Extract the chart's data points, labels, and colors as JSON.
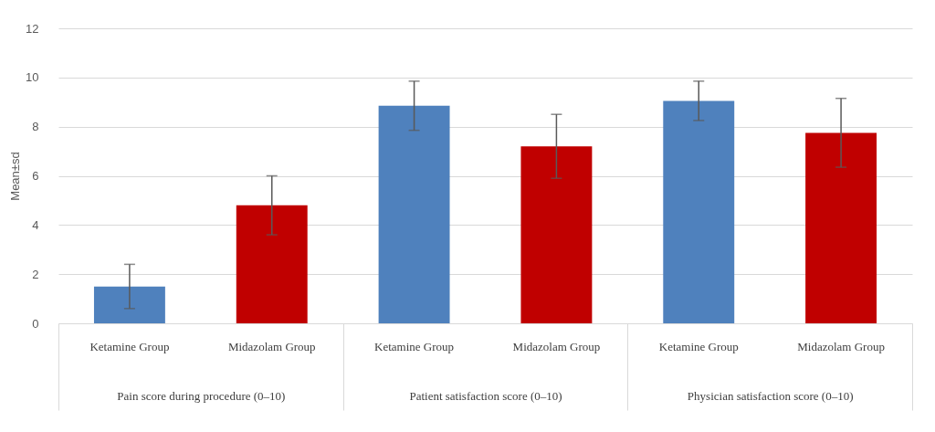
{
  "chart_data": {
    "type": "bar",
    "ylabel": "Mean±sd",
    "categories": [
      "Pain score during procedure (0–10)",
      "Patient satisfaction score (0–10)",
      "Physician satisfaction score (0–10)"
    ],
    "series": [
      {
        "name": "Ketamine Group",
        "color": "#4f81bd",
        "values": [
          1.5,
          8.85,
          9.05
        ],
        "errors": [
          0.9,
          1.0,
          0.8
        ]
      },
      {
        "name": "Midazolam Group",
        "color": "#c00000",
        "values": [
          4.8,
          7.2,
          7.75
        ],
        "errors": [
          1.2,
          1.3,
          1.4
        ]
      }
    ],
    "ylim": [
      0,
      12
    ],
    "yticks": [
      0,
      2,
      4,
      6,
      8,
      10,
      12
    ],
    "grid": "y",
    "legend": false
  }
}
